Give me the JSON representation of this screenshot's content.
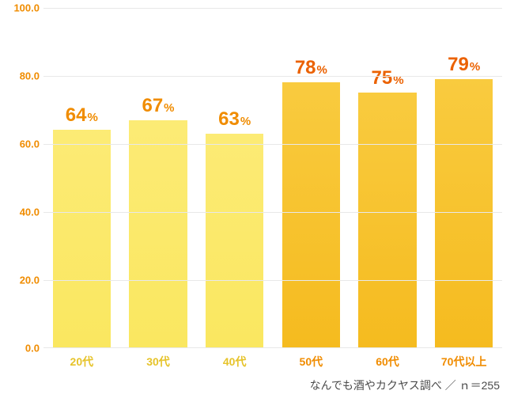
{
  "chart": {
    "type": "bar",
    "ylim": [
      0,
      100
    ],
    "ytick_step": 20,
    "yticks": [
      0.0,
      20.0,
      40.0,
      60.0,
      80.0,
      100.0
    ],
    "ytick_labels": [
      "0.0",
      "20.0",
      "40.0",
      "60.0",
      "80.0",
      "100.0"
    ],
    "ytick_color": "#f08c00",
    "ytick_fontsize": 13,
    "grid_color": "#e8e8e8",
    "background_color": "#ffffff",
    "bar_width": 0.76,
    "categories": [
      "20代",
      "30代",
      "40代",
      "50代",
      "60代",
      "70代以上"
    ],
    "values": [
      64,
      67,
      63,
      78,
      75,
      79
    ],
    "value_suffix": "%",
    "bar_colors": [
      "#fbe96b",
      "#fbe96b",
      "#fbe96b",
      "#f7c330",
      "#f7c330",
      "#f7c330"
    ],
    "bar_gradient_top": [
      "#fceb75",
      "#fceb75",
      "#fceb75",
      "#f9cb3f",
      "#f9cb3f",
      "#f9cb3f"
    ],
    "bar_gradient_bottom": [
      "#fae760",
      "#fae760",
      "#fae760",
      "#f5bb1f",
      "#f5bb1f",
      "#f5bb1f"
    ],
    "value_label_colors": [
      "#f08c00",
      "#f08c00",
      "#f08c00",
      "#eb6100",
      "#eb6100",
      "#eb6100"
    ],
    "value_label_fontsize_num": 24,
    "value_label_fontsize_pct": 15,
    "xtick_colors": [
      "#e6c32a",
      "#e6c32a",
      "#e6c32a",
      "#f08c00",
      "#f08c00",
      "#f08c00"
    ],
    "xtick_fontsize": 14
  },
  "source_note": "なんでも酒やカクヤス調べ ／ ｎ＝255",
  "source_note_color": "#4a4a4a"
}
